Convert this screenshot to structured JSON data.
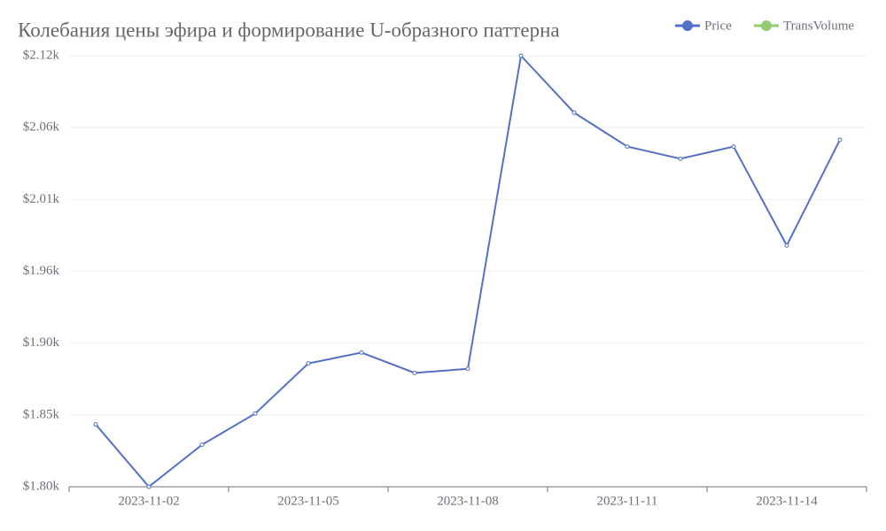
{
  "chart_data": {
    "type": "line",
    "title": "Колебания цены эфира и формирование U-образного паттерна",
    "categories": [
      null,
      "2023-11-02",
      null,
      null,
      "2023-11-05",
      null,
      null,
      "2023-11-08",
      null,
      null,
      "2023-11-11",
      null,
      null,
      "2023-11-14",
      null
    ],
    "series": [
      {
        "name": "Price",
        "color": "#5470c6",
        "values": [
          1844,
          1798,
          1829,
          1852,
          1889,
          1897,
          1882,
          1885,
          2116,
          2074,
          2049,
          2040,
          2049,
          1976,
          2054
        ]
      },
      {
        "name": "TransVolume",
        "color": "#91cc75",
        "values": [
          null,
          null,
          null,
          null,
          null,
          null,
          null,
          null,
          null,
          null,
          null,
          null,
          null,
          null,
          null
        ]
      }
    ],
    "ylim": [
      1798,
      2116
    ],
    "yticks": [
      {
        "value": 1798,
        "label": "$1.80k"
      },
      {
        "value": 1851,
        "label": "$1.85k"
      },
      {
        "value": 1904,
        "label": "$1.90k"
      },
      {
        "value": 1957,
        "label": "$1.96k"
      },
      {
        "value": 2010,
        "label": "$2.01k"
      },
      {
        "value": 2063,
        "label": "$2.06k"
      },
      {
        "value": 2116,
        "label": "$2.12k"
      }
    ],
    "grid": true,
    "legend": "top-right"
  }
}
